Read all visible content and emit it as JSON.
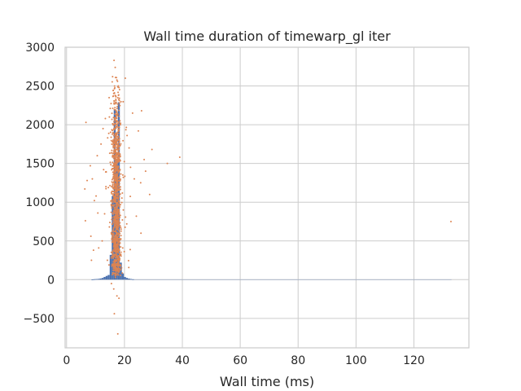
{
  "chart_data": {
    "type": "scatter",
    "title": "Wall time duration of timewarp_gl iter",
    "xlabel": "Wall time (ms)",
    "ylabel": "",
    "xlim": [
      -0.5,
      139
    ],
    "ylim": [
      -880,
      3000
    ],
    "x_ticks": [
      0,
      20,
      40,
      60,
      80,
      100,
      120
    ],
    "x_tick_labels": [
      "0",
      "20",
      "40",
      "60",
      "80",
      "100",
      "120"
    ],
    "y_ticks": [
      -500,
      0,
      500,
      1000,
      1500,
      2000,
      2500,
      3000
    ],
    "y_tick_labels": [
      "−500",
      "0",
      "500",
      "1000",
      "1500",
      "2000",
      "2500",
      "3000"
    ],
    "grid": true,
    "colors": {
      "histogram": "#4c72b0",
      "scatter": "#dd8452",
      "grid": "#cccccc",
      "frame": "#cccccc"
    },
    "histogram": {
      "bins": [
        {
          "x0": 8.6,
          "x1": 9.3,
          "count": 3
        },
        {
          "x0": 9.3,
          "x1": 10.0,
          "count": 6
        },
        {
          "x0": 10.0,
          "x1": 10.7,
          "count": 8
        },
        {
          "x0": 10.7,
          "x1": 11.4,
          "count": 10
        },
        {
          "x0": 11.4,
          "x1": 12.1,
          "count": 15
        },
        {
          "x0": 12.1,
          "x1": 12.8,
          "count": 22
        },
        {
          "x0": 12.8,
          "x1": 13.5,
          "count": 35
        },
        {
          "x0": 13.5,
          "x1": 14.2,
          "count": 48
        },
        {
          "x0": 14.2,
          "x1": 14.9,
          "count": 60
        },
        {
          "x0": 14.9,
          "x1": 15.6,
          "count": 320
        },
        {
          "x0": 15.6,
          "x1": 16.3,
          "count": 1080
        },
        {
          "x0": 16.3,
          "x1": 17.0,
          "count": 2200
        },
        {
          "x0": 17.0,
          "x1": 17.7,
          "count": 1550
        },
        {
          "x0": 17.7,
          "x1": 18.4,
          "count": 2290
        },
        {
          "x0": 18.4,
          "x1": 19.1,
          "count": 220
        },
        {
          "x0": 19.1,
          "x1": 19.8,
          "count": 80
        },
        {
          "x0": 19.8,
          "x1": 20.5,
          "count": 35
        },
        {
          "x0": 20.5,
          "x1": 21.2,
          "count": 22
        },
        {
          "x0": 21.2,
          "x1": 21.9,
          "count": 14
        },
        {
          "x0": 21.9,
          "x1": 22.6,
          "count": 9
        },
        {
          "x0": 22.6,
          "x1": 23.3,
          "count": 5
        }
      ],
      "tail": {
        "x0": 23.3,
        "x1": 133,
        "count": 2
      }
    },
    "scatter": {
      "points": [
        [
          16.4,
          2830
        ],
        [
          16.8,
          2740
        ],
        [
          15.9,
          2620
        ],
        [
          20.3,
          2600
        ],
        [
          17.6,
          2560
        ],
        [
          18.1,
          2480
        ],
        [
          14.7,
          2350
        ],
        [
          17.9,
          2380
        ],
        [
          25.9,
          2180
        ],
        [
          15.1,
          2210
        ],
        [
          22.8,
          2150
        ],
        [
          13.4,
          2080
        ],
        [
          6.7,
          2030
        ],
        [
          18.6,
          2000
        ],
        [
          24.8,
          1920
        ],
        [
          12.6,
          1950
        ],
        [
          20.9,
          1860
        ],
        [
          14.2,
          1830
        ],
        [
          26.8,
          1550
        ],
        [
          27.3,
          1400
        ],
        [
          28.7,
          1100
        ],
        [
          25.6,
          1250
        ],
        [
          39.1,
          1580
        ],
        [
          34.8,
          1500
        ],
        [
          29.5,
          1680
        ],
        [
          8.2,
          1470
        ],
        [
          8.9,
          1300
        ],
        [
          6.3,
          1170
        ],
        [
          7.1,
          1280
        ],
        [
          9.6,
          1020
        ],
        [
          10.2,
          1080
        ],
        [
          6.5,
          760
        ],
        [
          10.8,
          860
        ],
        [
          8.4,
          560
        ],
        [
          12.3,
          500
        ],
        [
          11.1,
          410
        ],
        [
          24.1,
          820
        ],
        [
          25.7,
          600
        ],
        [
          9.3,
          380
        ],
        [
          8.6,
          250
        ],
        [
          14.1,
          250
        ],
        [
          18.7,
          180
        ],
        [
          16.9,
          30
        ],
        [
          16.3,
          -120
        ],
        [
          17.4,
          -210
        ],
        [
          16.5,
          -440
        ],
        [
          18.1,
          -240
        ],
        [
          17.7,
          -700
        ],
        [
          15.5,
          -50
        ],
        [
          16.1,
          120
        ],
        [
          132.8,
          750
        ],
        [
          21.6,
          1700
        ],
        [
          22.1,
          1450
        ],
        [
          23.4,
          1300
        ],
        [
          11.9,
          1750
        ],
        [
          10.6,
          1600
        ],
        [
          12.8,
          1420
        ],
        [
          13.6,
          1200
        ],
        [
          19.6,
          900
        ],
        [
          20.8,
          720
        ]
      ],
      "generated_cloud": {
        "count": 1100,
        "x_center": 17.2,
        "x_spread": 1.6,
        "y_min": 50,
        "y_max": 2700
      }
    }
  }
}
